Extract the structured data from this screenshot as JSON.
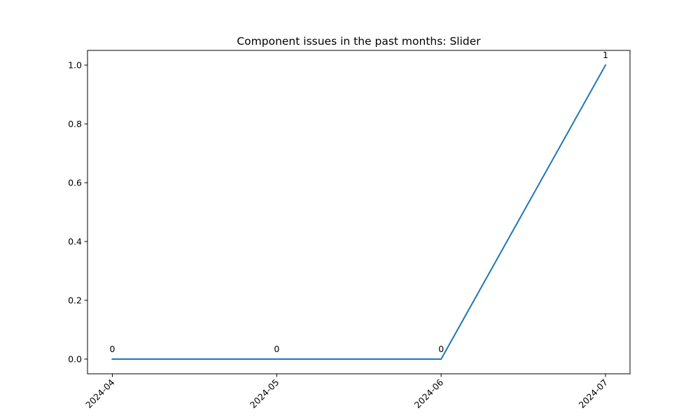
{
  "chart_data": {
    "type": "line",
    "title": "Component issues in the past months: Slider",
    "xlabel": "",
    "ylabel": "",
    "categories": [
      "2024-04",
      "2024-05",
      "2024-06",
      "2024-07"
    ],
    "series": [
      {
        "values": [
          0,
          0,
          0,
          1
        ],
        "data_labels": [
          "0",
          "0",
          "0",
          "1"
        ],
        "color": "#1f77b4"
      }
    ],
    "ylim": [
      -0.05,
      1.05
    ],
    "y_ticks": [
      0.0,
      0.2,
      0.4,
      0.6,
      0.8,
      1.0
    ],
    "y_tick_labels": [
      "0.0",
      "0.2",
      "0.4",
      "0.6",
      "0.8",
      "1.0"
    ],
    "grid": false,
    "legend": "none"
  }
}
